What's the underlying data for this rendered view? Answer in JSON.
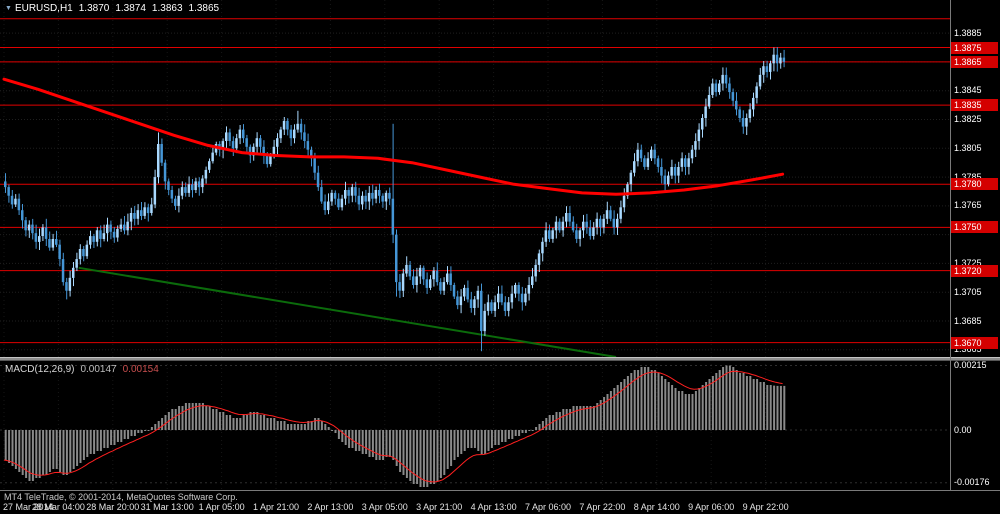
{
  "window": {
    "symbol_period": "EURUSD,H1",
    "ohlc": {
      "open": "1.3870",
      "high": "1.3874",
      "low": "1.3863",
      "close": "1.3865"
    },
    "copyright": "MT4 TeleTrade, © 2001-2014, MetaQuotes Software Corp."
  },
  "indicator_label": {
    "name": "MACD(12,26,9)",
    "value_main": "0.00147",
    "value_signal": "0.00154"
  },
  "price_axis": {
    "ticks": [
      "1.3885",
      "1.3845",
      "1.3825",
      "1.3805",
      "1.3785",
      "1.3765",
      "1.3725",
      "1.3705",
      "1.3685",
      "1.3665"
    ],
    "badges": [
      "1.3875",
      "1.3865",
      "1.3835",
      "1.3780",
      "1.3750",
      "1.3720",
      "1.3670"
    ]
  },
  "macd_axis": {
    "labels": [
      {
        "text": "0.00215",
        "value": 0.00215
      },
      {
        "text": "0.00",
        "value": 0
      },
      {
        "text": "-0.00176",
        "value": -0.00176
      }
    ]
  },
  "time_axis": {
    "label_every": 16,
    "labels": [
      "27 Mar 2014",
      "28 Mar 04:00",
      "28 Mar 20:00",
      "31 Mar 13:00",
      "1 Apr 05:00",
      "1 Apr 21:00",
      "2 Apr 13:00",
      "3 Apr 05:00",
      "3 Apr 21:00",
      "4 Apr 13:00",
      "7 Apr 06:00",
      "7 Apr 22:00",
      "8 Apr 14:00",
      "9 Apr 06:00",
      "9 Apr 22:00"
    ]
  },
  "colors": {
    "background": "#000000",
    "bull": "#a9d9ff",
    "bear": "#4596d6",
    "ma": "#ff0000",
    "hline": "#e00000",
    "badge_bg": "#d40000",
    "trendline": "#0b6b0b",
    "histogram": "#8a8a8a",
    "signal": "#ff2020",
    "axis_text": "#ffffff",
    "grid": "#1f1f1f",
    "separator": "#8d8d8d"
  },
  "chart_data": [
    {
      "type": "candlestick",
      "symbol": "EURUSD",
      "timeframe": "H1",
      "title": "EURUSD,H1",
      "price_range": [
        1.366,
        1.3908
      ],
      "hlines": [
        1.3895,
        1.3875,
        1.3865,
        1.3835,
        1.378,
        1.375,
        1.372,
        1.367
      ],
      "ohlc_current": {
        "open": 1.387,
        "high": 1.3874,
        "low": 1.3863,
        "close": 1.3865
      },
      "trendline": {
        "i1": 22,
        "p1": 1.3722,
        "i2": 180,
        "p2": 1.366
      },
      "ma_points": [
        [
          0,
          1.3853
        ],
        [
          10,
          1.3846
        ],
        [
          20,
          1.3838
        ],
        [
          30,
          1.383
        ],
        [
          40,
          1.3822
        ],
        [
          50,
          1.3814
        ],
        [
          60,
          1.3807
        ],
        [
          70,
          1.3802
        ],
        [
          80,
          1.38
        ],
        [
          90,
          1.3799
        ],
        [
          100,
          1.3799
        ],
        [
          110,
          1.3798
        ],
        [
          120,
          1.3795
        ],
        [
          130,
          1.379
        ],
        [
          140,
          1.3785
        ],
        [
          150,
          1.378
        ],
        [
          160,
          1.3777
        ],
        [
          170,
          1.3774
        ],
        [
          180,
          1.3773
        ],
        [
          190,
          1.3774
        ],
        [
          200,
          1.3776
        ],
        [
          210,
          1.3779
        ],
        [
          220,
          1.3783
        ],
        [
          229,
          1.3787
        ]
      ],
      "wick_overrides": {
        "18": {
          "l": 1.37
        },
        "45": {
          "h": 1.3816
        },
        "86": {
          "h": 1.3831
        },
        "114": {
          "h": 1.3822
        },
        "115": {
          "l": 1.3702
        },
        "140": {
          "l": 1.3664
        },
        "226": {
          "h": 1.3875
        }
      },
      "closes": [
        1.3778,
        1.3772,
        1.3766,
        1.377,
        1.3762,
        1.3755,
        1.3748,
        1.3752,
        1.3746,
        1.374,
        1.3744,
        1.375,
        1.3742,
        1.3736,
        1.3742,
        1.3738,
        1.3728,
        1.3712,
        1.3706,
        1.3715,
        1.3722,
        1.3728,
        1.3735,
        1.373,
        1.3738,
        1.3744,
        1.374,
        1.3748,
        1.3742,
        1.3746,
        1.3752,
        1.3747,
        1.3743,
        1.3749,
        1.3752,
        1.3748,
        1.3754,
        1.376,
        1.3756,
        1.3762,
        1.3758,
        1.3764,
        1.376,
        1.3766,
        1.3785,
        1.3808,
        1.3795,
        1.3782,
        1.3776,
        1.377,
        1.3765,
        1.3772,
        1.3778,
        1.3774,
        1.378,
        1.3776,
        1.3782,
        1.3778,
        1.3784,
        1.379,
        1.3796,
        1.3802,
        1.3808,
        1.3804,
        1.381,
        1.3816,
        1.381,
        1.3805,
        1.3812,
        1.3818,
        1.3812,
        1.3806,
        1.38,
        1.3806,
        1.3812,
        1.3806,
        1.38,
        1.3794,
        1.38,
        1.3806,
        1.3812,
        1.3818,
        1.3824,
        1.3818,
        1.3812,
        1.3818,
        1.3822,
        1.3816,
        1.381,
        1.3804,
        1.3798,
        1.3788,
        1.3778,
        1.3768,
        1.3762,
        1.3768,
        1.3774,
        1.377,
        1.3764,
        1.377,
        1.3776,
        1.3772,
        1.3778,
        1.3772,
        1.3766,
        1.3772,
        1.3768,
        1.3774,
        1.377,
        1.3776,
        1.3772,
        1.3768,
        1.3774,
        1.377,
        1.3745,
        1.3712,
        1.3706,
        1.3718,
        1.3724,
        1.3716,
        1.371,
        1.3716,
        1.3722,
        1.3714,
        1.3708,
        1.3714,
        1.372,
        1.3712,
        1.3706,
        1.3712,
        1.3718,
        1.371,
        1.3702,
        1.3696,
        1.3702,
        1.3708,
        1.37,
        1.3694,
        1.37,
        1.3706,
        1.3678,
        1.3692,
        1.3698,
        1.3692,
        1.3698,
        1.3704,
        1.3698,
        1.3692,
        1.3698,
        1.3704,
        1.371,
        1.3704,
        1.3698,
        1.3704,
        1.371,
        1.3716,
        1.3724,
        1.3732,
        1.374,
        1.3748,
        1.3742,
        1.3748,
        1.3754,
        1.3748,
        1.3754,
        1.376,
        1.3754,
        1.3748,
        1.3742,
        1.3748,
        1.3754,
        1.375,
        1.3744,
        1.375,
        1.3756,
        1.375,
        1.3756,
        1.3762,
        1.3756,
        1.375,
        1.3756,
        1.3764,
        1.3772,
        1.378,
        1.3788,
        1.3796,
        1.3804,
        1.3798,
        1.3792,
        1.3798,
        1.3804,
        1.3798,
        1.3792,
        1.3786,
        1.378,
        1.3786,
        1.3792,
        1.3786,
        1.3792,
        1.3798,
        1.3792,
        1.3798,
        1.3804,
        1.381,
        1.3818,
        1.3826,
        1.3834,
        1.3842,
        1.385,
        1.3844,
        1.385,
        1.3856,
        1.385,
        1.3844,
        1.3838,
        1.3832,
        1.3826,
        1.382,
        1.3826,
        1.3832,
        1.384,
        1.3848,
        1.3856,
        1.3862,
        1.3858,
        1.3864,
        1.387,
        1.3864,
        1.3868,
        1.3865
      ]
    },
    {
      "type": "bar",
      "name": "MACD(12,26,9)",
      "range": [
        -0.002,
        0.0023
      ],
      "signal_period": 9,
      "current_macd": 0.00147,
      "current_signal": 0.00154,
      "values": [
        -0.001,
        -0.0011,
        -0.0012,
        -0.0013,
        -0.0014,
        -0.0015,
        -0.0016,
        -0.0017,
        -0.0017,
        -0.0016,
        -0.0016,
        -0.0015,
        -0.0015,
        -0.0014,
        -0.0013,
        -0.0013,
        -0.0014,
        -0.0015,
        -0.0015,
        -0.0014,
        -0.0013,
        -0.0012,
        -0.0011,
        -0.001,
        -0.0009,
        -0.0008,
        -0.0008,
        -0.0007,
        -0.0007,
        -0.0006,
        -0.0006,
        -0.0005,
        -0.0005,
        -0.0004,
        -0.0004,
        -0.0003,
        -0.0003,
        -0.0002,
        -0.0002,
        -0.0001,
        -0.0001,
        0.0,
        0.0,
        0.0001,
        0.0002,
        0.0003,
        0.0004,
        0.0005,
        0.0006,
        0.0007,
        0.0007,
        0.0008,
        0.0008,
        0.0009,
        0.0009,
        0.0009,
        0.0009,
        0.0009,
        0.0009,
        0.0008,
        0.0008,
        0.0007,
        0.0007,
        0.0006,
        0.0006,
        0.0005,
        0.0005,
        0.0004,
        0.0004,
        0.0004,
        0.0005,
        0.0005,
        0.0006,
        0.0006,
        0.0006,
        0.0005,
        0.0005,
        0.0004,
        0.0004,
        0.0004,
        0.0003,
        0.0003,
        0.0003,
        0.0002,
        0.0002,
        0.0002,
        0.0002,
        0.0002,
        0.0002,
        0.0003,
        0.0003,
        0.0004,
        0.0004,
        0.0003,
        0.0002,
        0.0001,
        0.0,
        -0.0001,
        -0.0003,
        -0.0004,
        -0.0005,
        -0.0006,
        -0.0006,
        -0.0007,
        -0.0007,
        -0.0008,
        -0.0008,
        -0.0009,
        -0.0009,
        -0.001,
        -0.001,
        -0.001,
        -0.0009,
        -0.0009,
        -0.001,
        -0.0012,
        -0.0014,
        -0.0015,
        -0.0016,
        -0.0017,
        -0.0018,
        -0.0018,
        -0.0019,
        -0.0019,
        -0.0019,
        -0.0018,
        -0.0018,
        -0.0017,
        -0.0016,
        -0.0015,
        -0.0013,
        -0.0012,
        -0.001,
        -0.0009,
        -0.0008,
        -0.0007,
        -0.0006,
        -0.0006,
        -0.0006,
        -0.0007,
        -0.0008,
        -0.0008,
        -0.0007,
        -0.0006,
        -0.0005,
        -0.0005,
        -0.0004,
        -0.0004,
        -0.0003,
        -0.0003,
        -0.0002,
        -0.0002,
        -0.0001,
        -0.0001,
        0.0,
        0.0,
        0.0001,
        0.0002,
        0.0003,
        0.0004,
        0.0005,
        0.0005,
        0.0006,
        0.0006,
        0.0007,
        0.0007,
        0.0007,
        0.0008,
        0.0008,
        0.0008,
        0.0008,
        0.0008,
        0.0008,
        0.0008,
        0.0009,
        0.001,
        0.0011,
        0.0012,
        0.0013,
        0.0014,
        0.0015,
        0.0016,
        0.0017,
        0.0018,
        0.0019,
        0.002,
        0.002,
        0.0021,
        0.0021,
        0.0021,
        0.002,
        0.002,
        0.0019,
        0.0018,
        0.0017,
        0.0016,
        0.0015,
        0.0014,
        0.0013,
        0.0013,
        0.0012,
        0.0012,
        0.0012,
        0.0013,
        0.0014,
        0.0015,
        0.0016,
        0.0017,
        0.0018,
        0.0019,
        0.002,
        0.0021,
        0.00215,
        0.00215,
        0.0021,
        0.002,
        0.0019,
        0.0019,
        0.0018,
        0.0018,
        0.0017,
        0.0017,
        0.0016,
        0.0016,
        0.0015,
        0.0015,
        0.00148,
        0.00147,
        0.00147,
        0.00147
      ]
    }
  ]
}
